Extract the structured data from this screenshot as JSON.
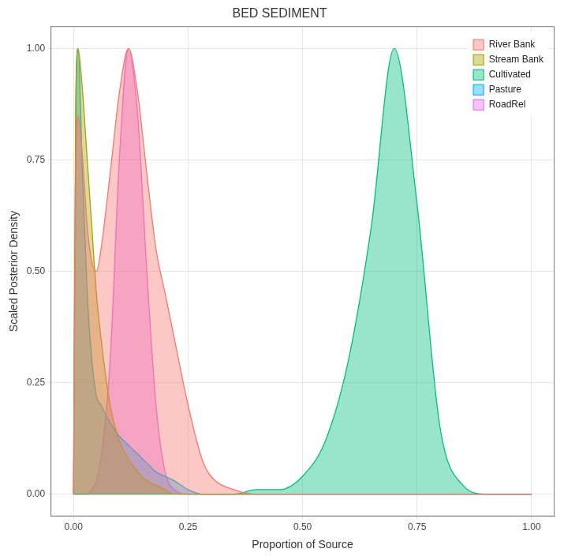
{
  "chart_data": {
    "type": "area",
    "title": "BED SEDIMENT",
    "x_label": "Proportion of Source",
    "y_label": "Scaled Posterior Density",
    "x": [
      0,
      0.005,
      0.01,
      0.02,
      0.03,
      0.04,
      0.05,
      0.06,
      0.08,
      0.1,
      0.12,
      0.14,
      0.16,
      0.18,
      0.2,
      0.22,
      0.25,
      0.28,
      0.3,
      0.35,
      0.4,
      0.45,
      0.5,
      0.55,
      0.6,
      0.65,
      0.7,
      0.75,
      0.8,
      0.85,
      0.9,
      0.95,
      1.0
    ],
    "series": [
      {
        "name": "River Bank",
        "color": "#f8766d",
        "values": [
          0,
          0.7,
          0.85,
          0.75,
          0.6,
          0.52,
          0.5,
          0.55,
          0.72,
          0.9,
          1.0,
          0.9,
          0.72,
          0.55,
          0.45,
          0.35,
          0.2,
          0.08,
          0.04,
          0.01,
          0,
          0,
          0,
          0,
          0,
          0,
          0,
          0,
          0,
          0,
          0,
          0,
          0
        ]
      },
      {
        "name": "Stream Bank",
        "color": "#a3a500",
        "values": [
          0,
          0.9,
          1.0,
          0.9,
          0.75,
          0.6,
          0.45,
          0.35,
          0.2,
          0.12,
          0.08,
          0.05,
          0.03,
          0.02,
          0.01,
          0,
          0,
          0,
          0,
          0,
          0,
          0,
          0,
          0,
          0,
          0,
          0,
          0,
          0,
          0,
          0,
          0,
          0
        ]
      },
      {
        "name": "Cultivated",
        "color": "#00bf7d",
        "values": [
          0,
          0,
          0,
          0,
          0,
          0,
          0,
          0,
          0,
          0,
          0,
          0,
          0,
          0,
          0,
          0,
          0,
          0,
          0,
          0,
          0.01,
          0.01,
          0.04,
          0.12,
          0.3,
          0.6,
          1.0,
          0.65,
          0.15,
          0.02,
          0,
          0,
          0
        ]
      },
      {
        "name": "Pasture",
        "color": "#00b0f6",
        "values": [
          0,
          0.85,
          1.0,
          0.7,
          0.45,
          0.3,
          0.22,
          0.2,
          0.16,
          0.13,
          0.11,
          0.09,
          0.07,
          0.05,
          0.04,
          0.03,
          0.01,
          0,
          0,
          0,
          0,
          0,
          0,
          0,
          0,
          0,
          0,
          0,
          0,
          0,
          0,
          0,
          0
        ]
      },
      {
        "name": "RoadRel",
        "color": "#e76bf3",
        "values": [
          0,
          0,
          0,
          0,
          0,
          0.01,
          0.03,
          0.08,
          0.3,
          0.75,
          1.0,
          0.85,
          0.5,
          0.2,
          0.05,
          0.01,
          0,
          0,
          0,
          0,
          0,
          0,
          0,
          0,
          0,
          0,
          0,
          0,
          0,
          0,
          0,
          0,
          0
        ]
      }
    ],
    "xlim": [
      -0.05,
      1.05
    ],
    "xticks": [
      {
        "value": 0,
        "label": "0.00"
      },
      {
        "value": 0.25,
        "label": "0.25"
      },
      {
        "value": 0.5,
        "label": "0.50"
      },
      {
        "value": 0.75,
        "label": "0.75"
      },
      {
        "value": 1,
        "label": "1.00"
      }
    ],
    "ylim": [
      -0.05,
      1.05
    ],
    "yticks": [
      {
        "value": 0,
        "label": "0.00"
      },
      {
        "value": 0.25,
        "label": "0.25"
      },
      {
        "value": 0.5,
        "label": "0.50"
      },
      {
        "value": 0.75,
        "label": "0.75"
      },
      {
        "value": 1,
        "label": "1.00"
      }
    ],
    "grid": true,
    "legend": "top right"
  }
}
